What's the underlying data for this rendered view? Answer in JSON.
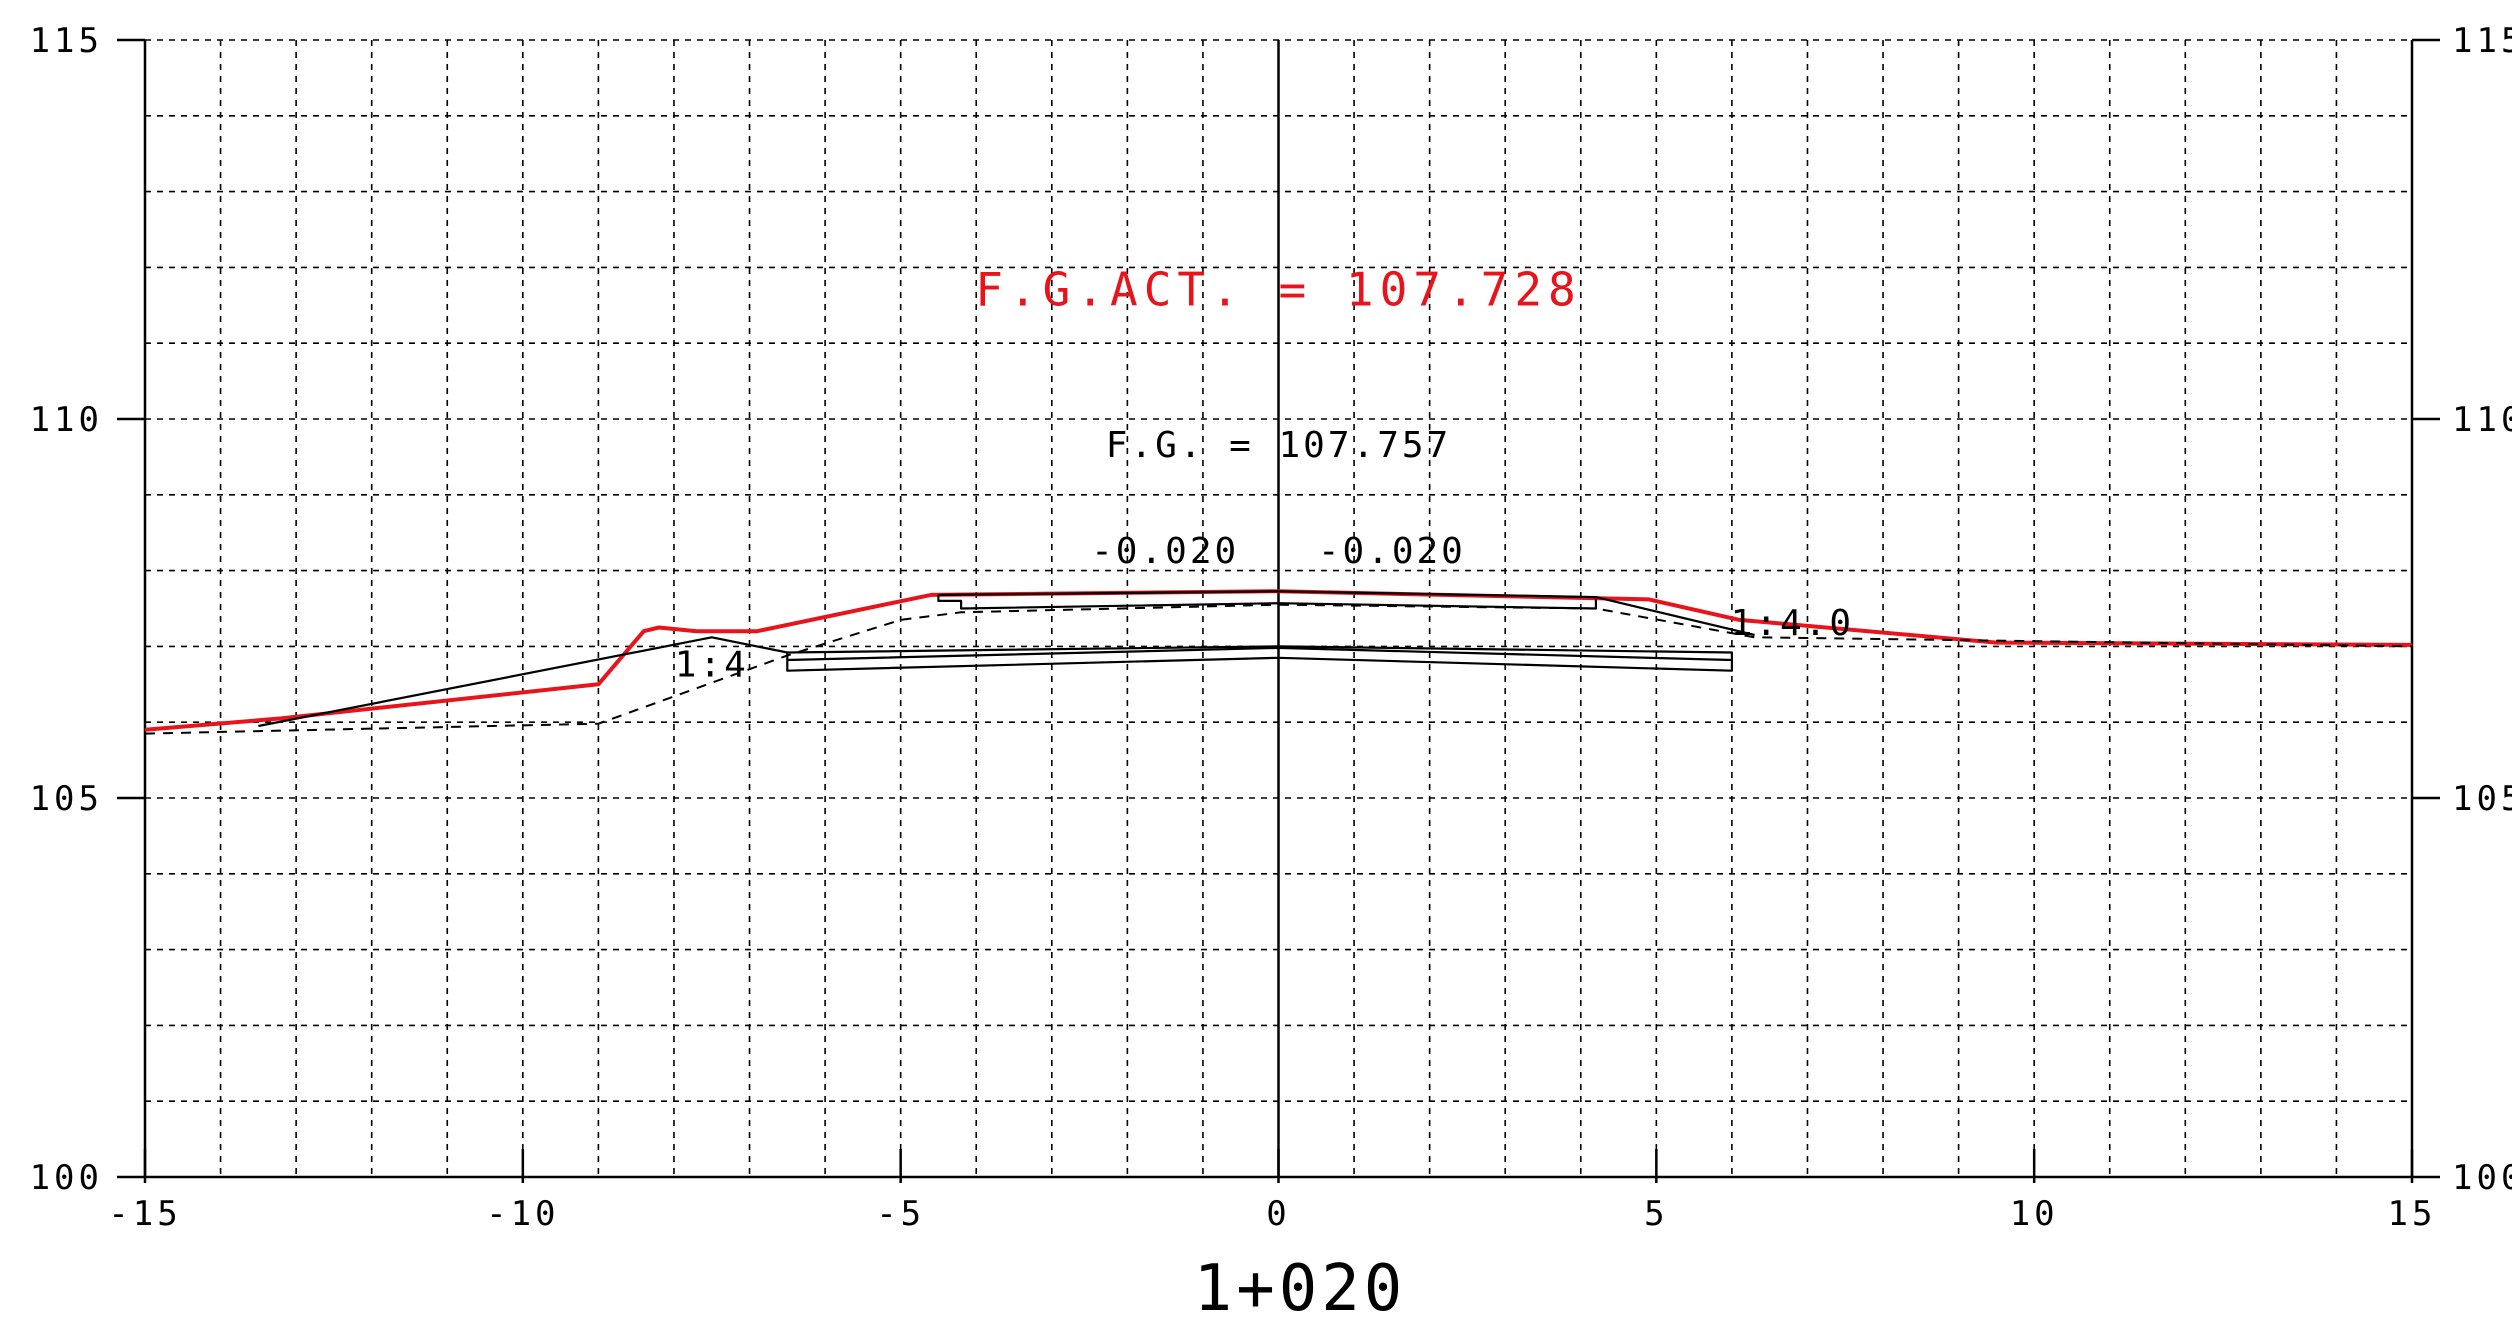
{
  "chart_data": {
    "type": "line",
    "xlim": [
      -15,
      15
    ],
    "ylim": [
      100,
      115
    ],
    "grid": true,
    "x_ticks": [
      -15,
      -10,
      -5,
      0,
      5,
      10,
      15
    ],
    "x_tick_labels": [
      "-15",
      "-10",
      "-5",
      "0",
      "5",
      "10",
      "15"
    ],
    "y_ticks": [
      100,
      105,
      110,
      115
    ],
    "y_tick_labels": [
      "100",
      "105",
      "110",
      "115"
    ],
    "xlabel": "1+020",
    "colors": {
      "red": "#e8141b",
      "black": "#000000"
    },
    "series": [
      {
        "style": "red-solid",
        "points": [
          [
            -15,
            105.9
          ],
          [
            -13.2,
            106.05
          ],
          [
            -9,
            106.5
          ],
          [
            -8.4,
            107.2
          ],
          [
            -8.2,
            107.25
          ],
          [
            -7.7,
            107.2
          ],
          [
            -6.9,
            107.2
          ],
          [
            -4.6,
            107.68
          ],
          [
            0,
            107.728
          ],
          [
            4.9,
            107.62
          ],
          [
            6.1,
            107.35
          ],
          [
            9.5,
            107.05
          ],
          [
            15,
            107.02
          ]
        ]
      },
      {
        "style": "black-dashed",
        "points": [
          [
            -15,
            105.85
          ],
          [
            -9,
            105.98
          ],
          [
            -6.5,
            106.88
          ],
          [
            -5,
            107.35
          ],
          [
            -4.2,
            107.45
          ],
          [
            0,
            107.55
          ],
          [
            4.2,
            107.5
          ],
          [
            6.3,
            107.12
          ],
          [
            15,
            107.0
          ]
        ]
      },
      {
        "style": "black-solid",
        "points": [
          [
            -13.5,
            105.95
          ],
          [
            -7.5,
            107.12
          ],
          [
            -6.5,
            106.92
          ]
        ]
      },
      {
        "style": "black-solid",
        "points": [
          [
            -4.5,
            107.68
          ],
          [
            0,
            107.727
          ],
          [
            4.2,
            107.65
          ],
          [
            6.3,
            107.15
          ]
        ]
      },
      {
        "style": "black-solid",
        "points": [
          [
            -4.5,
            107.68
          ],
          [
            -4.5,
            107.6
          ],
          [
            -4.2,
            107.6
          ],
          [
            -4.2,
            107.5
          ],
          [
            0,
            107.57
          ],
          [
            4.2,
            107.5
          ],
          [
            4.2,
            107.62
          ]
        ]
      },
      {
        "style": "black-solid",
        "points": [
          [
            -6.5,
            106.92
          ],
          [
            -6.5,
            106.68
          ],
          [
            0,
            106.85
          ],
          [
            6,
            106.68
          ],
          [
            6,
            106.92
          ],
          [
            0,
            107.0
          ],
          [
            -6.5,
            106.92
          ]
        ]
      },
      {
        "style": "black-solid",
        "points": [
          [
            -6.5,
            106.82
          ],
          [
            0,
            106.98
          ],
          [
            6,
            106.82
          ]
        ]
      }
    ],
    "annotations": [
      {
        "text": "F.G.ACT. = 107.728",
        "x": 0,
        "y": 111.5,
        "color": "red"
      },
      {
        "text": "F.G. = 107.757",
        "x": 0,
        "y": 109.5,
        "color": "black"
      },
      {
        "text": "-0.020",
        "x": -1.5,
        "y": 108.1,
        "color": "black"
      },
      {
        "text": "-0.020",
        "x": 1.5,
        "y": 108.1,
        "color": "black"
      },
      {
        "text": "1:4",
        "x": -7.5,
        "y": 106.6,
        "color": "black"
      },
      {
        "text": "1:4.0",
        "x": 6.8,
        "y": 107.15,
        "color": "black"
      }
    ]
  }
}
